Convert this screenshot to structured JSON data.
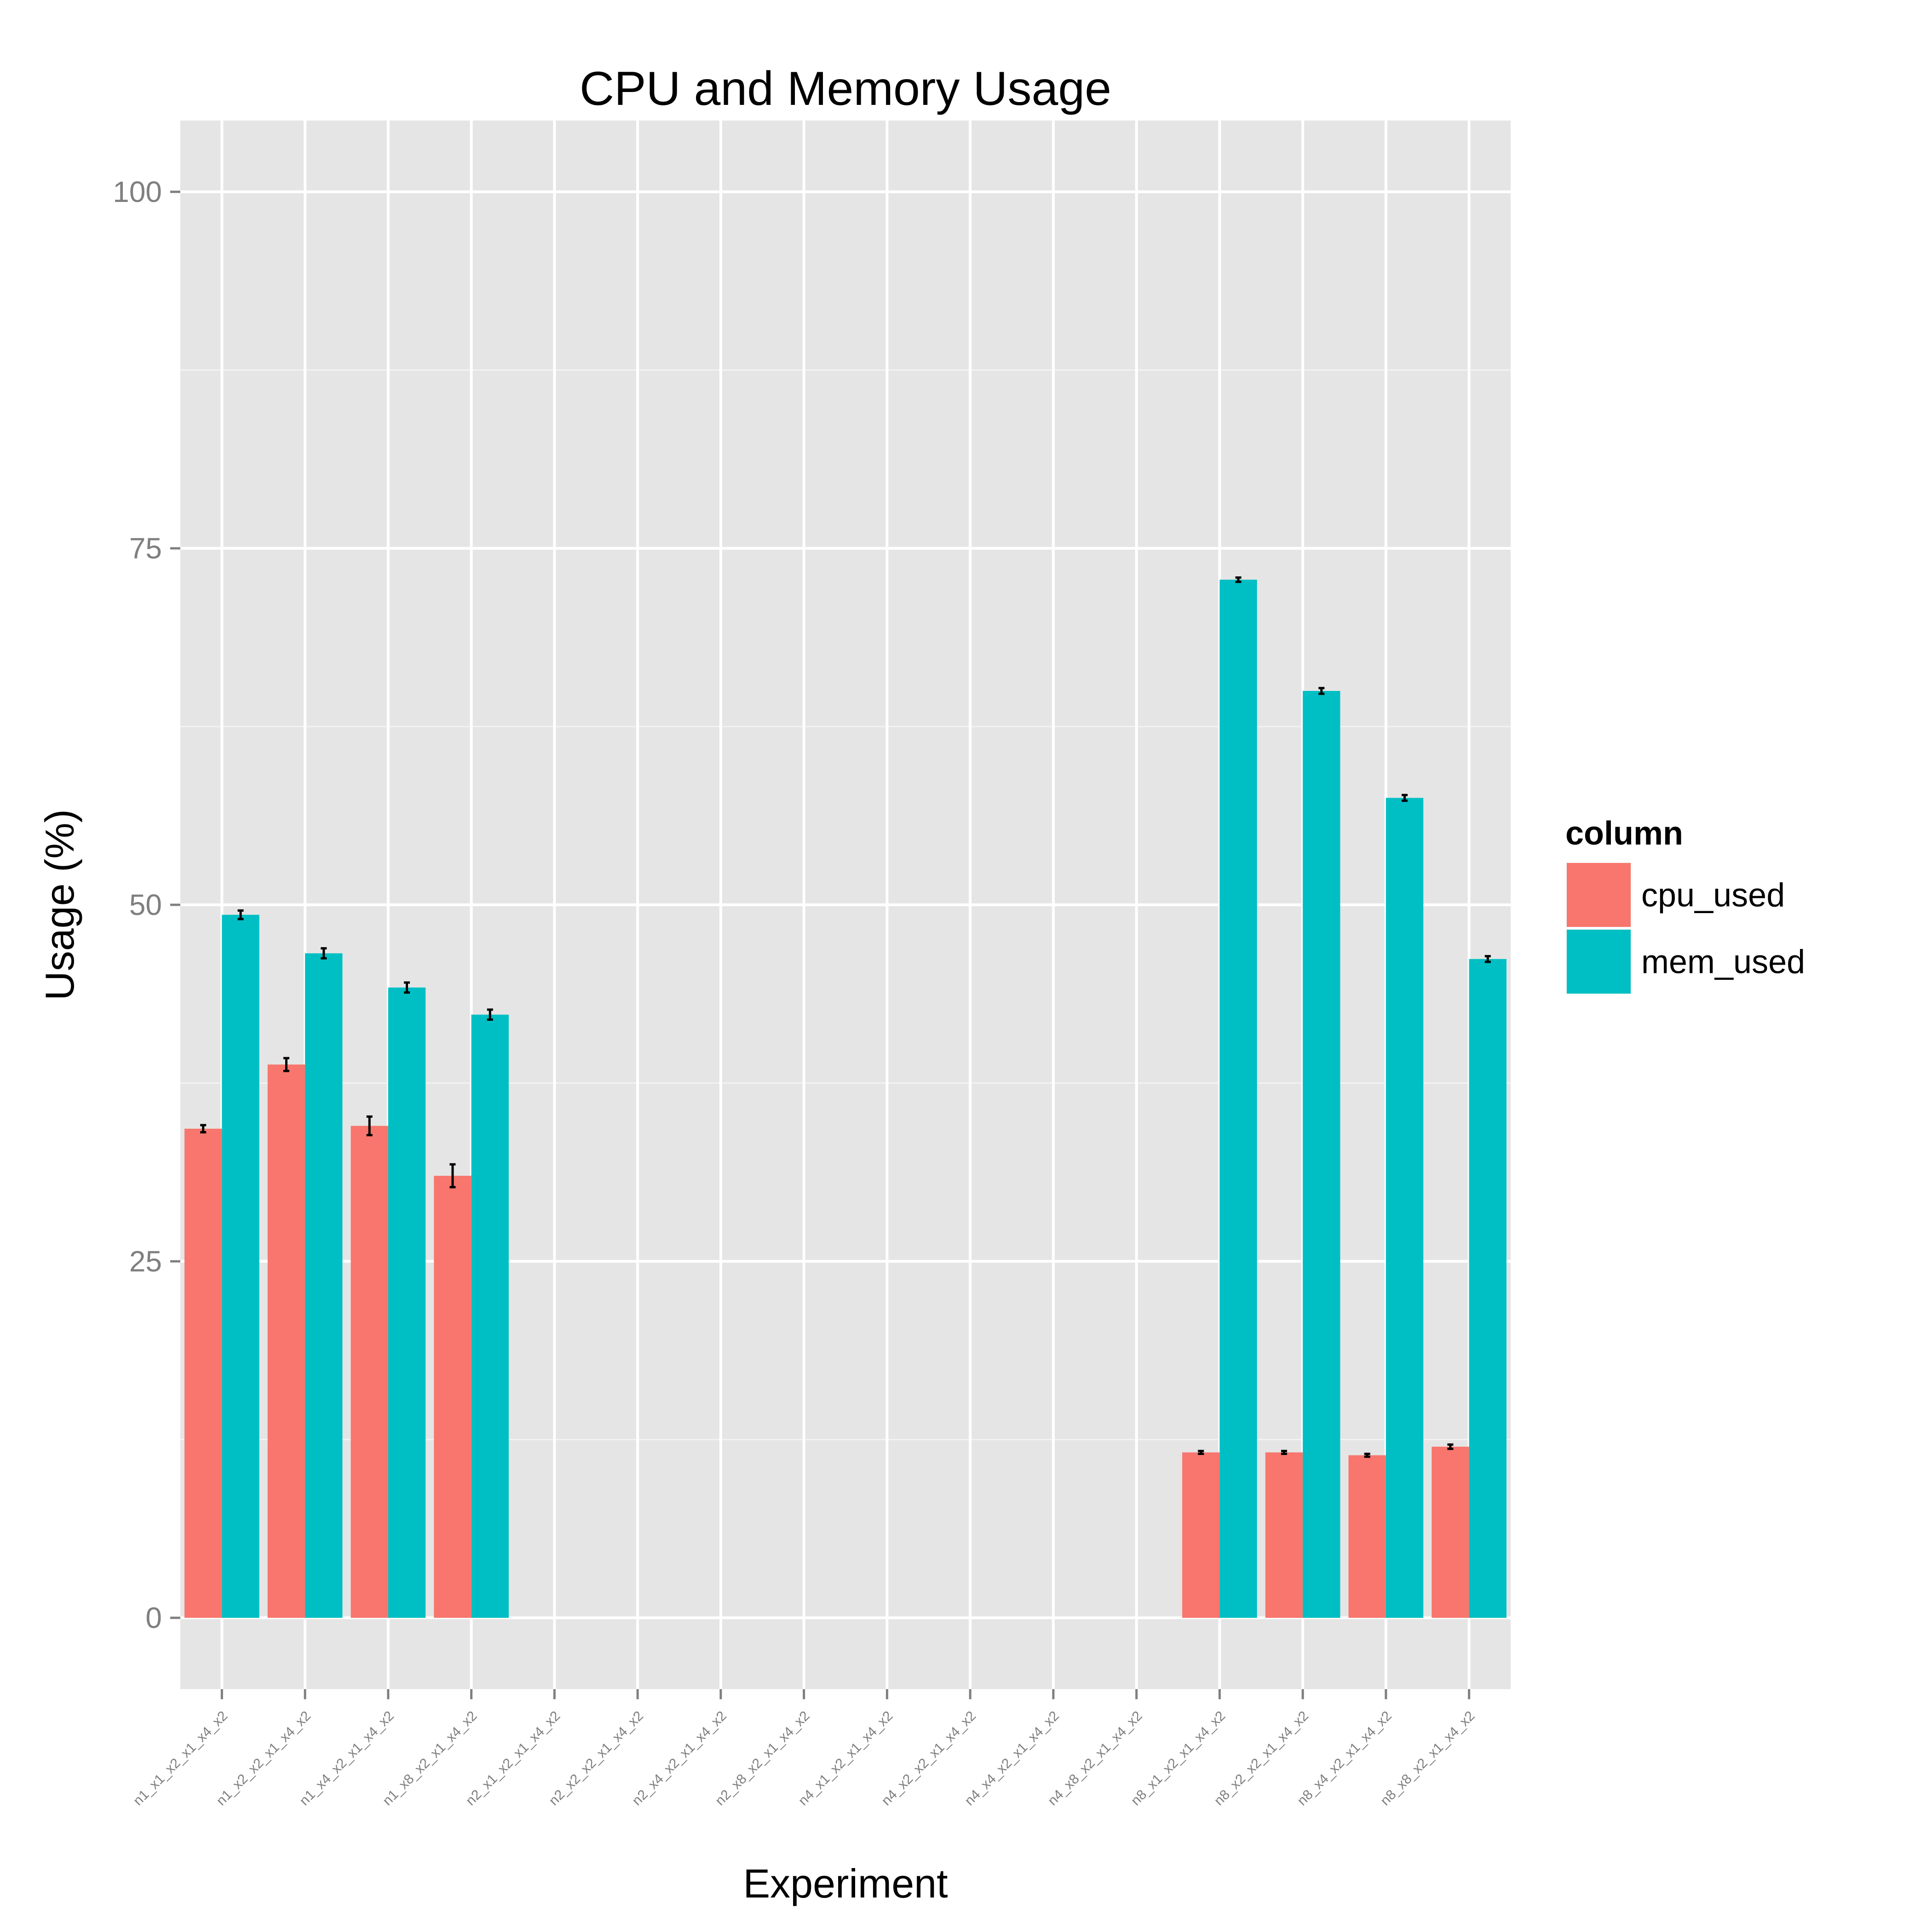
{
  "chart_data": {
    "type": "bar",
    "title": "CPU and Memory Usage",
    "xlabel": "Experiment",
    "ylabel": "Usage (%)",
    "ylim": [
      -5,
      105
    ],
    "yticks": [
      0,
      25,
      50,
      75,
      100
    ],
    "grid": true,
    "legend": {
      "title": "column",
      "position": "right"
    },
    "categories": [
      "n1_x1_x2_x1_x4_x2",
      "n1_x2_x2_x1_x4_x2",
      "n1_x4_x2_x1_x4_x2",
      "n1_x8_x2_x1_x4_x2",
      "n2_x1_x2_x1_x4_x2",
      "n2_x2_x2_x1_x4_x2",
      "n2_x4_x2_x1_x4_x2",
      "n2_x8_x2_x1_x4_x2",
      "n4_x1_x2_x1_x4_x2",
      "n4_x2_x2_x1_x4_x2",
      "n4_x4_x2_x1_x4_x2",
      "n4_x8_x2_x1_x4_x2",
      "n8_x1_x2_x1_x4_x2",
      "n8_x2_x2_x1_x4_x2",
      "n8_x4_x2_x1_x4_x2",
      "n8_x8_x2_x1_x4_x2"
    ],
    "series": [
      {
        "name": "cpu_used",
        "color": "#F8766D",
        "values": [
          34.3,
          38.8,
          34.5,
          31.0,
          null,
          null,
          null,
          null,
          null,
          null,
          null,
          null,
          11.6,
          11.6,
          11.4,
          12.0
        ],
        "errors": [
          0.25,
          0.45,
          0.65,
          0.8,
          null,
          null,
          null,
          null,
          null,
          null,
          null,
          null,
          0.1,
          0.1,
          0.1,
          0.15
        ]
      },
      {
        "name": "mem_used",
        "color": "#00BFC4",
        "values": [
          49.3,
          46.6,
          44.2,
          42.3,
          null,
          null,
          null,
          null,
          null,
          null,
          null,
          null,
          72.8,
          65.0,
          57.5,
          46.2
        ],
        "errors": [
          0.3,
          0.35,
          0.35,
          0.35,
          null,
          null,
          null,
          null,
          null,
          null,
          null,
          null,
          0.15,
          0.2,
          0.2,
          0.2
        ]
      }
    ]
  }
}
